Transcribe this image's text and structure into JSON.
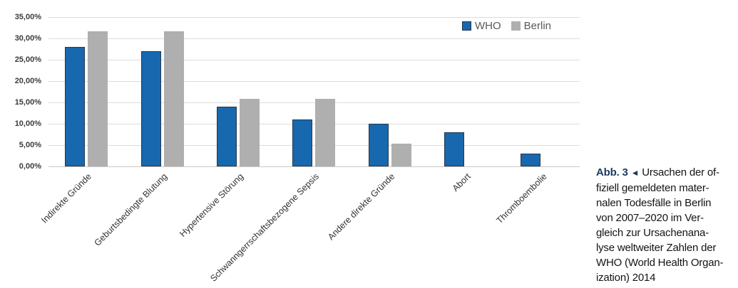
{
  "chart_data": {
    "type": "bar",
    "title": "",
    "xlabel": "",
    "ylabel": "",
    "categories": [
      "Indirekte Gründe",
      "Geburtsbedingte Blutung",
      "Hypertensive Störung",
      "Schwanngerrschaftsbezogene Sepsis",
      "Andere direkte Gründe",
      "Abort",
      "Thromboembolie"
    ],
    "series": [
      {
        "name": "WHO",
        "color": "#1768AE",
        "border_color": "#24384e",
        "values": [
          28,
          27,
          14,
          11,
          10,
          8,
          3
        ]
      },
      {
        "name": "Berlin",
        "color": "#AFAFAF",
        "border_color": "#AFAFAF",
        "values": [
          31.6,
          31.6,
          15.8,
          15.8,
          5.3,
          0,
          0
        ]
      }
    ],
    "ylim": [
      0,
      35
    ],
    "ytick_labels": [
      "0,00%",
      "5,00%",
      "10,00%",
      "15,00%",
      "20,00%",
      "25,00%",
      "30,00%",
      "35,00%"
    ],
    "grid": true,
    "legend_position": "top-right"
  },
  "figure": {
    "caption": {
      "label": "Abb. 3",
      "arrow": "◄",
      "lines": [
        "Ursachen der of-",
        "fiziell gemeldeten mater-",
        "nalen Todesfälle in Berlin",
        "von 2007–2020 im Ver-",
        "gleich zur Ursachenana-",
        "lyse weltweiter Zahlen der",
        "WHO (World Health Organ-",
        "ization) 2014"
      ]
    }
  },
  "colors": {
    "who_bar": "#1768AE",
    "who_bar_border": "#24384e",
    "berlin_bar": "#AFAFAF",
    "gridline": "#dcdcdc",
    "axis_line": "#c9c9c9",
    "tick_label": "#3b3b3b",
    "legend_text": "#595959",
    "caption_accent": "#1b3a5e"
  }
}
